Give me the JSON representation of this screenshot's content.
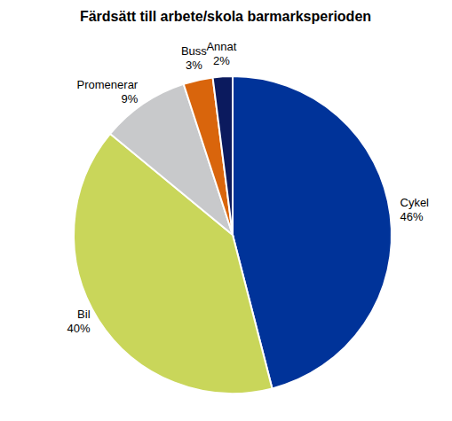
{
  "chart_data": {
    "type": "pie",
    "title": "Färdsätt till arbete/skola barmarksperioden",
    "categories": [
      "Cykel",
      "Bil",
      "Promenerar",
      "Buss",
      "Annat"
    ],
    "values": [
      46,
      40,
      9,
      3,
      2
    ],
    "value_labels": [
      "46%",
      "40%",
      "9%",
      "3%",
      "2%"
    ],
    "colors": [
      "#003399",
      "#c9d65a",
      "#c8c9cb",
      "#d9650c",
      "#0b1a5e"
    ],
    "data_labels": true
  }
}
